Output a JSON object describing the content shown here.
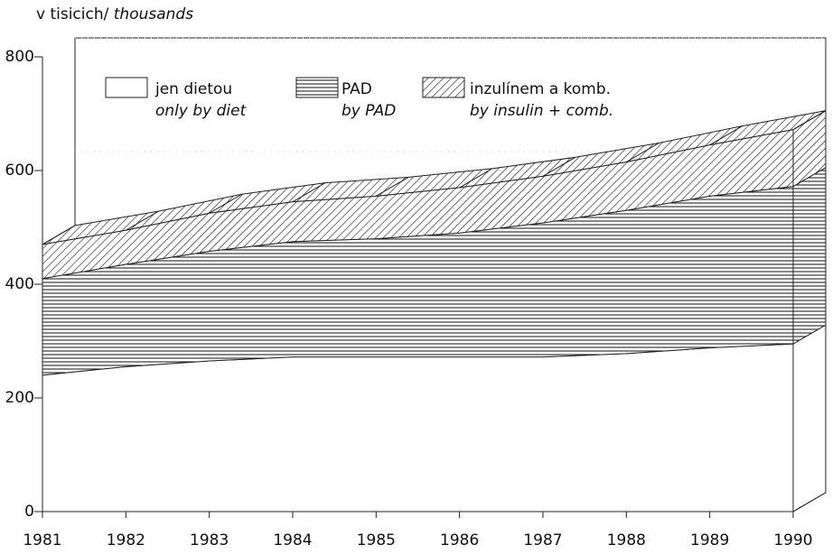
{
  "chart_data": {
    "type": "stacked-area",
    "y_label": "v tisicich/",
    "y_label_italic": "thousands",
    "categories": [
      "1981",
      "1982",
      "1983",
      "1984",
      "1985",
      "1986",
      "1987",
      "1988",
      "1989",
      "1990"
    ],
    "series": [
      {
        "name": "jen dietou",
        "subname": "only by diet",
        "pattern": "none",
        "color": "#ffffff",
        "values": [
          240,
          255,
          265,
          272,
          272,
          272,
          272,
          278,
          288,
          295
        ]
      },
      {
        "name": "PAD",
        "subname": "by PAD",
        "pattern": "horizontal",
        "color": "#111111",
        "values": [
          170,
          180,
          193,
          203,
          208,
          218,
          236,
          252,
          267,
          277
        ]
      },
      {
        "name": "inzulínem a komb.",
        "subname": "by insulin + comb.",
        "pattern": "diagonal",
        "color": "#111111",
        "values": [
          60,
          60,
          67,
          70,
          75,
          80,
          82,
          85,
          90,
          100
        ]
      }
    ],
    "ylim": [
      0,
      800
    ],
    "yticks": [
      0,
      200,
      400,
      600,
      800
    ],
    "three_d": true
  }
}
